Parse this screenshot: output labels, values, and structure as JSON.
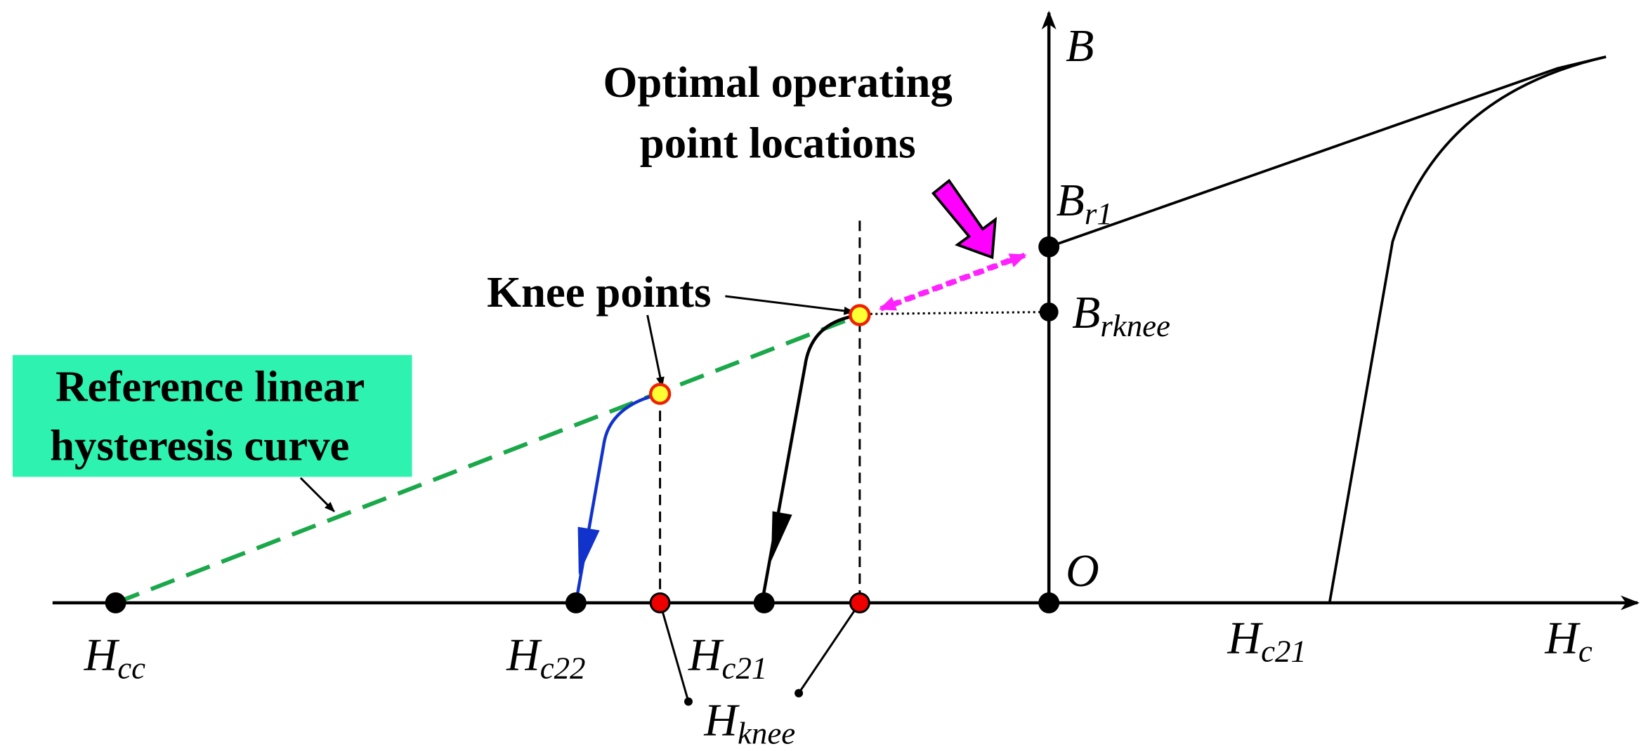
{
  "axes": {
    "y_label": "B",
    "origin": "O"
  },
  "labels": {
    "br1": {
      "main": "B",
      "sub": "r1"
    },
    "brknee": {
      "main": "B",
      "sub": "rknee"
    },
    "hcc": {
      "main": "H",
      "sub": "cc"
    },
    "hc22": {
      "main": "H",
      "sub": "c22"
    },
    "hc21_left": {
      "main": "H",
      "sub": "c21"
    },
    "hc21_right": {
      "main": "H",
      "sub": "c21"
    },
    "hc": {
      "main": "H",
      "sub": "c"
    },
    "hknee": {
      "main": "H",
      "sub": "knee"
    }
  },
  "annotations": {
    "optimal": [
      "Optimal operating",
      "point locations"
    ],
    "knee_points": "Knee points",
    "reference": [
      "Reference linear",
      "hysteresis curve"
    ]
  }
}
